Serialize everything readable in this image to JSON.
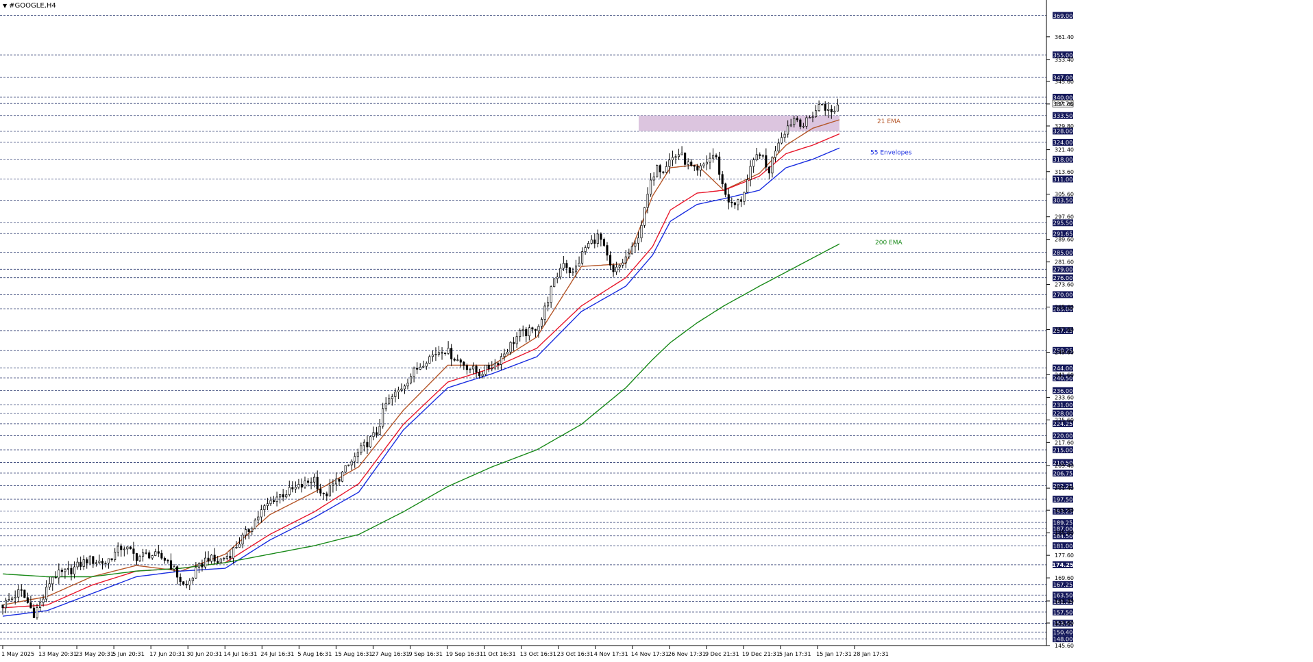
{
  "symbol": "#GOOGLE,H4",
  "colors": {
    "ema21": "#b5572a",
    "envelope_upper": "#e8182c",
    "envelope_lower": "#1a2ee0",
    "ema200": "#1a8a1a",
    "zone_fill": "#d8bfdc",
    "candles": "#000000",
    "level_line": "#2d3b70",
    "tag_bg": "#14185a"
  },
  "labels": {
    "ema21": "21 EMA",
    "envelopes": "55 Envelopes",
    "ema200": "200 EMA"
  },
  "chart_data": {
    "type": "candlestick",
    "title": "#GOOGLE,H4",
    "ylim": [
      145.6,
      373.0
    ],
    "y_ticks": [
      "361.40",
      "353.40",
      "345.60",
      "337.60",
      "329.80",
      "321.40",
      "313.60",
      "305.60",
      "297.60",
      "289.60",
      "281.60",
      "273.60",
      "265.60",
      "257.60",
      "249.60",
      "241.60",
      "233.60",
      "225.60",
      "217.60",
      "209.40",
      "201.40",
      "193.60",
      "185.60",
      "177.60",
      "169.60",
      "161.40",
      "153.60",
      "145.60"
    ],
    "x_labels": [
      "1 May 2025",
      "13 May 20:31",
      "23 May 20:31",
      "5 Jun 20:31",
      "17 Jun 20:31",
      "30 Jun 20:31",
      "14 Jul 16:31",
      "24 Jul 16:31",
      "5 Aug 16:31",
      "15 Aug 16:31",
      "27 Aug 16:31",
      "9 Sep 16:31",
      "19 Sep 16:31",
      "1 Oct 16:31",
      "13 Oct 16:31",
      "23 Oct 16:31",
      "4 Nov 17:31",
      "14 Nov 17:31",
      "26 Nov 17:31",
      "9 Dec 21:31",
      "19 Dec 21:31",
      "5 Jan 17:31",
      "15 Jan 17:31",
      "28 Jan 17:31"
    ],
    "levels": [
      "369.00",
      "355.00",
      "347.00",
      "340.00",
      "337.76",
      "333.50",
      "328.00",
      "324.00",
      "318.00",
      "311.00",
      "303.50",
      "295.50",
      "291.65",
      "285.00",
      "279.00",
      "276.00",
      "270.00",
      "265.00",
      "257.25",
      "250.25",
      "244.00",
      "240.50",
      "236.00",
      "231.00",
      "228.00",
      "224.25",
      "220.00",
      "215.00",
      "210.50",
      "206.75",
      "202.25",
      "197.50",
      "193.25",
      "189.25",
      "187.00",
      "184.50",
      "181.00",
      "174.25",
      "167.25",
      "163.50",
      "161.25",
      "157.50",
      "153.50",
      "150.40",
      "148.00"
    ],
    "current_price": "337.76",
    "highlighted_levels": [
      "174.25"
    ],
    "zone": {
      "low": 328.0,
      "high": 333.5
    },
    "close_path": [
      [
        0,
        160
      ],
      [
        4,
        165
      ],
      [
        7,
        157
      ],
      [
        9,
        162
      ],
      [
        11,
        170
      ],
      [
        15,
        172
      ],
      [
        19,
        176
      ],
      [
        23,
        175
      ],
      [
        27,
        181
      ],
      [
        30,
        177
      ],
      [
        33,
        178
      ],
      [
        37,
        176
      ],
      [
        41,
        166
      ],
      [
        43,
        171
      ],
      [
        46,
        177
      ],
      [
        48,
        175
      ],
      [
        51,
        178
      ],
      [
        55,
        186
      ],
      [
        58,
        193
      ],
      [
        61,
        198
      ],
      [
        64,
        200
      ],
      [
        67,
        202
      ],
      [
        70,
        205
      ],
      [
        72,
        198
      ],
      [
        75,
        204
      ],
      [
        78,
        210
      ],
      [
        81,
        216
      ],
      [
        84,
        221
      ],
      [
        86,
        231
      ],
      [
        89,
        236
      ],
      [
        92,
        242
      ],
      [
        95,
        247
      ],
      [
        97,
        249
      ],
      [
        99,
        251
      ],
      [
        102,
        247
      ],
      [
        104,
        245
      ],
      [
        107,
        242
      ],
      [
        109,
        244
      ],
      [
        111,
        246
      ],
      [
        114,
        252
      ],
      [
        116,
        256
      ],
      [
        119,
        257
      ],
      [
        121,
        261
      ],
      [
        123,
        271
      ],
      [
        126,
        282
      ],
      [
        128,
        277
      ],
      [
        131,
        287
      ],
      [
        134,
        291
      ],
      [
        136,
        282
      ],
      [
        137,
        277
      ],
      [
        139,
        281
      ],
      [
        142,
        287
      ],
      [
        144,
        298
      ],
      [
        145,
        306
      ],
      [
        147,
        317
      ],
      [
        148,
        314
      ],
      [
        150,
        318
      ],
      [
        152,
        320
      ],
      [
        154,
        316
      ],
      [
        156,
        313
      ],
      [
        158,
        317
      ],
      [
        160,
        320
      ],
      [
        162,
        307
      ],
      [
        164,
        301
      ],
      [
        166,
        304
      ],
      [
        168,
        314
      ],
      [
        170,
        321
      ],
      [
        172,
        313
      ],
      [
        174,
        324
      ],
      [
        176,
        329
      ],
      [
        178,
        333
      ],
      [
        180,
        330
      ],
      [
        182,
        334
      ],
      [
        184,
        338
      ],
      [
        186,
        334
      ],
      [
        188,
        338
      ]
    ],
    "series": [
      {
        "name": "21 EMA",
        "points": [
          [
            0,
            160
          ],
          [
            10,
            163
          ],
          [
            20,
            170
          ],
          [
            30,
            174
          ],
          [
            40,
            172
          ],
          [
            50,
            178
          ],
          [
            60,
            192
          ],
          [
            70,
            200
          ],
          [
            80,
            209
          ],
          [
            90,
            229
          ],
          [
            100,
            245
          ],
          [
            110,
            245
          ],
          [
            120,
            255
          ],
          [
            130,
            280
          ],
          [
            140,
            281
          ],
          [
            146,
            305
          ],
          [
            150,
            315
          ],
          [
            156,
            316
          ],
          [
            162,
            307
          ],
          [
            170,
            313
          ],
          [
            176,
            323
          ],
          [
            182,
            329
          ],
          [
            188,
            332
          ]
        ]
      },
      {
        "name": "Envelope upper",
        "points": [
          [
            0,
            159
          ],
          [
            10,
            160
          ],
          [
            20,
            167
          ],
          [
            30,
            172
          ],
          [
            40,
            173
          ],
          [
            50,
            175
          ],
          [
            60,
            185
          ],
          [
            70,
            193
          ],
          [
            80,
            203
          ],
          [
            90,
            224
          ],
          [
            100,
            239
          ],
          [
            110,
            244
          ],
          [
            120,
            251
          ],
          [
            130,
            266
          ],
          [
            140,
            276
          ],
          [
            146,
            287
          ],
          [
            150,
            300
          ],
          [
            156,
            306
          ],
          [
            162,
            307
          ],
          [
            170,
            312
          ],
          [
            176,
            320
          ],
          [
            182,
            323
          ],
          [
            188,
            327
          ]
        ]
      },
      {
        "name": "Envelope lower",
        "points": [
          [
            0,
            156
          ],
          [
            10,
            158
          ],
          [
            20,
            164
          ],
          [
            30,
            170
          ],
          [
            40,
            172
          ],
          [
            50,
            173
          ],
          [
            60,
            183
          ],
          [
            70,
            191
          ],
          [
            80,
            200
          ],
          [
            90,
            222
          ],
          [
            100,
            237
          ],
          [
            110,
            242
          ],
          [
            120,
            248
          ],
          [
            130,
            264
          ],
          [
            140,
            273
          ],
          [
            146,
            284
          ],
          [
            150,
            296
          ],
          [
            156,
            302
          ],
          [
            162,
            304
          ],
          [
            170,
            307
          ],
          [
            176,
            315
          ],
          [
            182,
            318
          ],
          [
            188,
            322
          ]
        ]
      },
      {
        "name": "200 EMA",
        "points": [
          [
            0,
            171
          ],
          [
            10,
            170
          ],
          [
            20,
            170
          ],
          [
            30,
            172
          ],
          [
            40,
            173
          ],
          [
            50,
            175
          ],
          [
            60,
            178
          ],
          [
            70,
            181
          ],
          [
            80,
            185
          ],
          [
            90,
            193
          ],
          [
            100,
            202
          ],
          [
            110,
            209
          ],
          [
            120,
            215
          ],
          [
            130,
            224
          ],
          [
            140,
            237
          ],
          [
            146,
            247
          ],
          [
            150,
            253
          ],
          [
            156,
            260
          ],
          [
            162,
            266
          ],
          [
            170,
            273
          ],
          [
            176,
            278
          ],
          [
            182,
            283
          ],
          [
            188,
            288
          ]
        ]
      }
    ]
  }
}
